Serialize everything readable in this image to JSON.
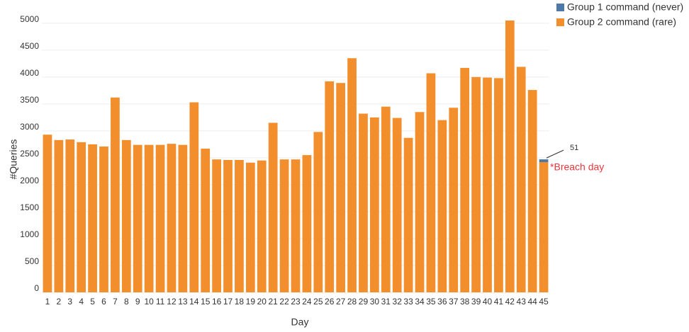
{
  "chart_data": {
    "type": "stacked-bar",
    "x_label": "Day",
    "y_label": "#Queries",
    "categories": [
      "1",
      "2",
      "3",
      "4",
      "5",
      "6",
      "7",
      "8",
      "9",
      "10",
      "11",
      "12",
      "13",
      "14",
      "15",
      "16",
      "17",
      "18",
      "19",
      "20",
      "21",
      "22",
      "23",
      "24",
      "25",
      "26",
      "27",
      "28",
      "29",
      "30",
      "31",
      "32",
      "33",
      "34",
      "35",
      "36",
      "37",
      "38",
      "39",
      "40",
      "41",
      "42",
      "43",
      "44",
      "45"
    ],
    "series": [
      {
        "name": "Group 1 command (never)",
        "color": "#4e79a7",
        "values": [
          null,
          null,
          null,
          null,
          null,
          null,
          null,
          null,
          null,
          null,
          null,
          null,
          null,
          null,
          null,
          null,
          null,
          null,
          null,
          null,
          null,
          null,
          null,
          null,
          null,
          null,
          null,
          null,
          null,
          null,
          null,
          null,
          null,
          null,
          null,
          null,
          null,
          null,
          null,
          null,
          null,
          null,
          null,
          null,
          51
        ]
      },
      {
        "name": "Group 2 command (rare)",
        "color": "#f28e2b",
        "values": [
          2930,
          2830,
          2840,
          2790,
          2750,
          2710,
          3620,
          2830,
          2740,
          2740,
          2740,
          2760,
          2740,
          3530,
          2670,
          2470,
          2460,
          2460,
          2410,
          2450,
          3150,
          2470,
          2470,
          2550,
          2980,
          3920,
          3890,
          4350,
          3320,
          3250,
          3450,
          3240,
          2870,
          3350,
          4070,
          3200,
          3430,
          4170,
          4000,
          3990,
          3980,
          5050,
          4190,
          3760,
          2420
        ]
      }
    ],
    "annotation": "*Breach day",
    "ylim": [
      0,
      5300
    ],
    "yticks": [
      0,
      500,
      1000,
      1500,
      2000,
      2500,
      3000,
      3500,
      4000,
      4500,
      5000
    ],
    "grid": true,
    "legend": "top-right"
  }
}
